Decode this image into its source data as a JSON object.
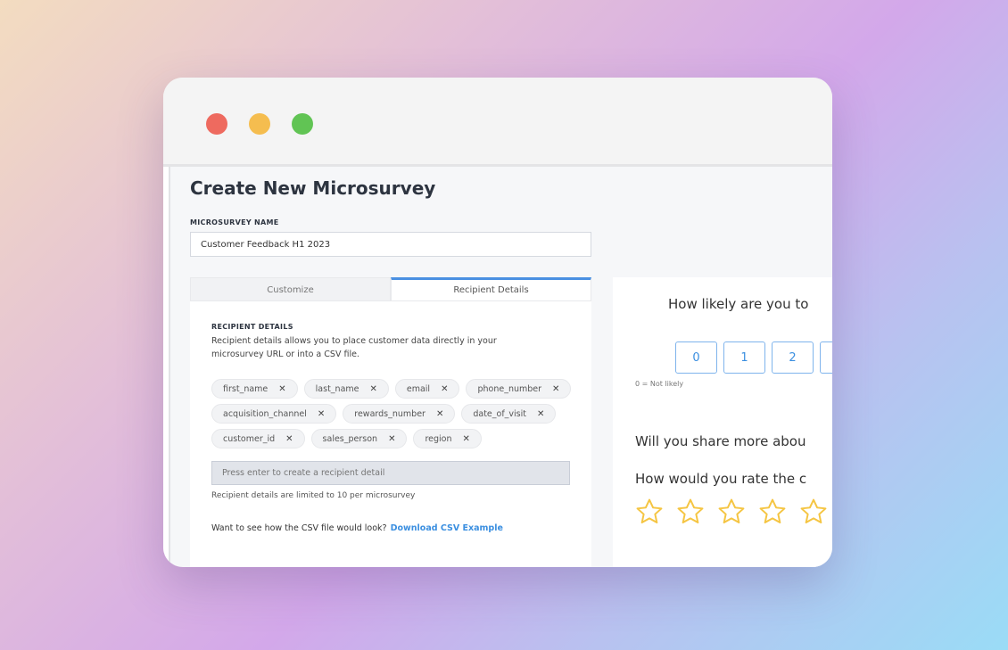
{
  "window": {
    "controls": [
      {
        "name": "close",
        "color": "#ee6a5f"
      },
      {
        "name": "minimize",
        "color": "#f5bd4f"
      },
      {
        "name": "maximize",
        "color": "#61c454"
      }
    ]
  },
  "page": {
    "title": "Create New Microsurvey"
  },
  "form": {
    "name_label": "MICROSURVEY NAME",
    "name_value": "Customer Feedback H1 2023"
  },
  "tabs": [
    {
      "label": "Customize",
      "active": false
    },
    {
      "label": "Recipient Details",
      "active": true
    }
  ],
  "recipient": {
    "heading": "RECIPIENT DETAILS",
    "description": "Recipient details allows you to place customer data directly in your microsurvey URL or into a CSV file.",
    "chips": [
      "first_name",
      "last_name",
      "email",
      "phone_number",
      "acquisition_channel",
      "rewards_number",
      "date_of_visit",
      "customer_id",
      "sales_person",
      "region"
    ],
    "input_placeholder": "Press enter to create a recipient detail",
    "limit_hint": "Recipient details are limited to 10 per microsurvey",
    "csv_prompt": "Want to see how the CSV file would look?",
    "csv_link": "Download CSV Example"
  },
  "preview": {
    "q1": "How likely are you to",
    "scale": [
      "0",
      "1",
      "2",
      ""
    ],
    "scale_low_label": "0 = Not likely",
    "q2": "Will you share more abou",
    "q3": "How would you rate the c",
    "stars": 5,
    "star_color": "#f5c542",
    "accent": "#3b8fe0"
  }
}
